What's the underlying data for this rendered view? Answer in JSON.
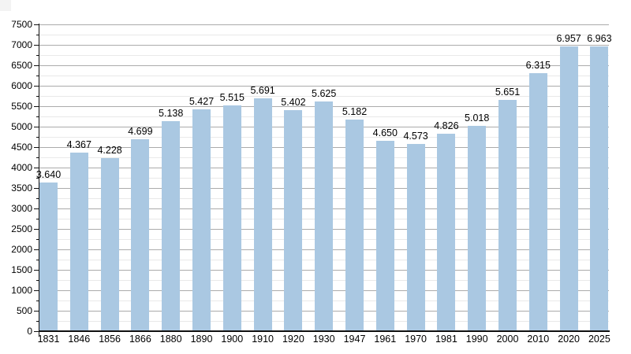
{
  "chart_data": {
    "type": "bar",
    "title": "",
    "xlabel": "",
    "ylabel": "",
    "categories": [
      "1831",
      "1846",
      "1856",
      "1866",
      "1880",
      "1890",
      "1900",
      "1910",
      "1920",
      "1930",
      "1947",
      "1961",
      "1970",
      "1981",
      "1990",
      "2000",
      "2010",
      "2020",
      "2025"
    ],
    "values": [
      3640,
      4367,
      4228,
      4699,
      5138,
      5427,
      5515,
      5691,
      5402,
      5625,
      5182,
      4650,
      4573,
      4826,
      5018,
      5651,
      6315,
      6957,
      6963
    ],
    "value_labels": [
      "3.640",
      "4.367",
      "4.228",
      "4.699",
      "5.138",
      "5.427",
      "5.515",
      "5.691",
      "5.402",
      "5.625",
      "5.182",
      "4.650",
      "4.573",
      "4.826",
      "5.018",
      "5.651",
      "6.315",
      "6.957",
      "6.963"
    ],
    "ylim": [
      0,
      7500
    ],
    "y_major_step": 500,
    "y_minor_step": 250,
    "y_tick_labels": [
      "0",
      "500",
      "1000",
      "1500",
      "2000",
      "2500",
      "3000",
      "3500",
      "4000",
      "4500",
      "5000",
      "5500",
      "6000",
      "6500",
      "7000",
      "7500"
    ],
    "grid": true,
    "legend_position": "none",
    "colors": {
      "bar": "#aac8e2",
      "grid_major": "#ababab",
      "grid_minor": "#e9e9e9",
      "axis": "#111111",
      "text": "#000000",
      "background": "#ffffff"
    }
  }
}
